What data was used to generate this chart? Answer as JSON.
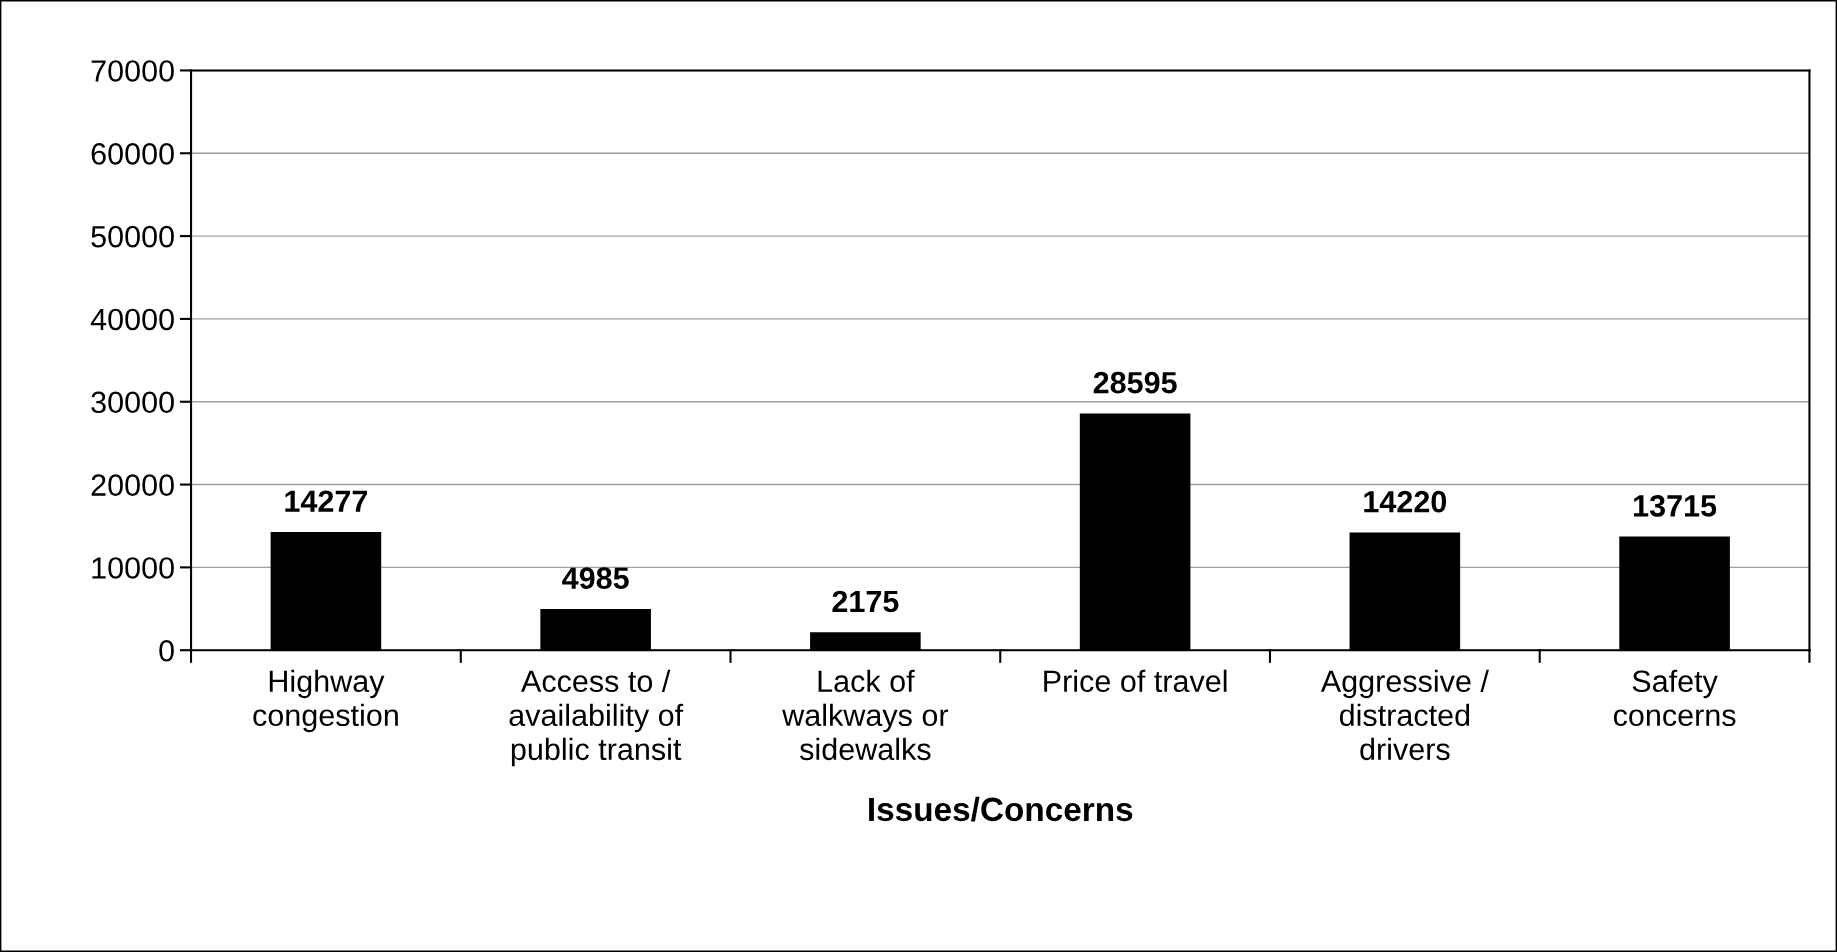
{
  "chart_data": {
    "type": "bar",
    "xlabel": "Issues/Concerns",
    "categories": [
      "Highway\ncongestion",
      "Access to /\navailability of\npublic transit",
      "Lack of\nwalkways or\nsidewalks",
      "Price of travel",
      "Aggressive /\ndistracted\ndrivers",
      "Safety\nconcerns"
    ],
    "values": [
      14277,
      4985,
      2175,
      28595,
      14220,
      13715
    ],
    "color": "#000000",
    "ylim": [
      0,
      70000
    ],
    "yticks": [
      0,
      10000,
      20000,
      30000,
      40000,
      50000,
      60000,
      70000
    ],
    "grid": "y",
    "data_labels": true,
    "legend": false
  }
}
